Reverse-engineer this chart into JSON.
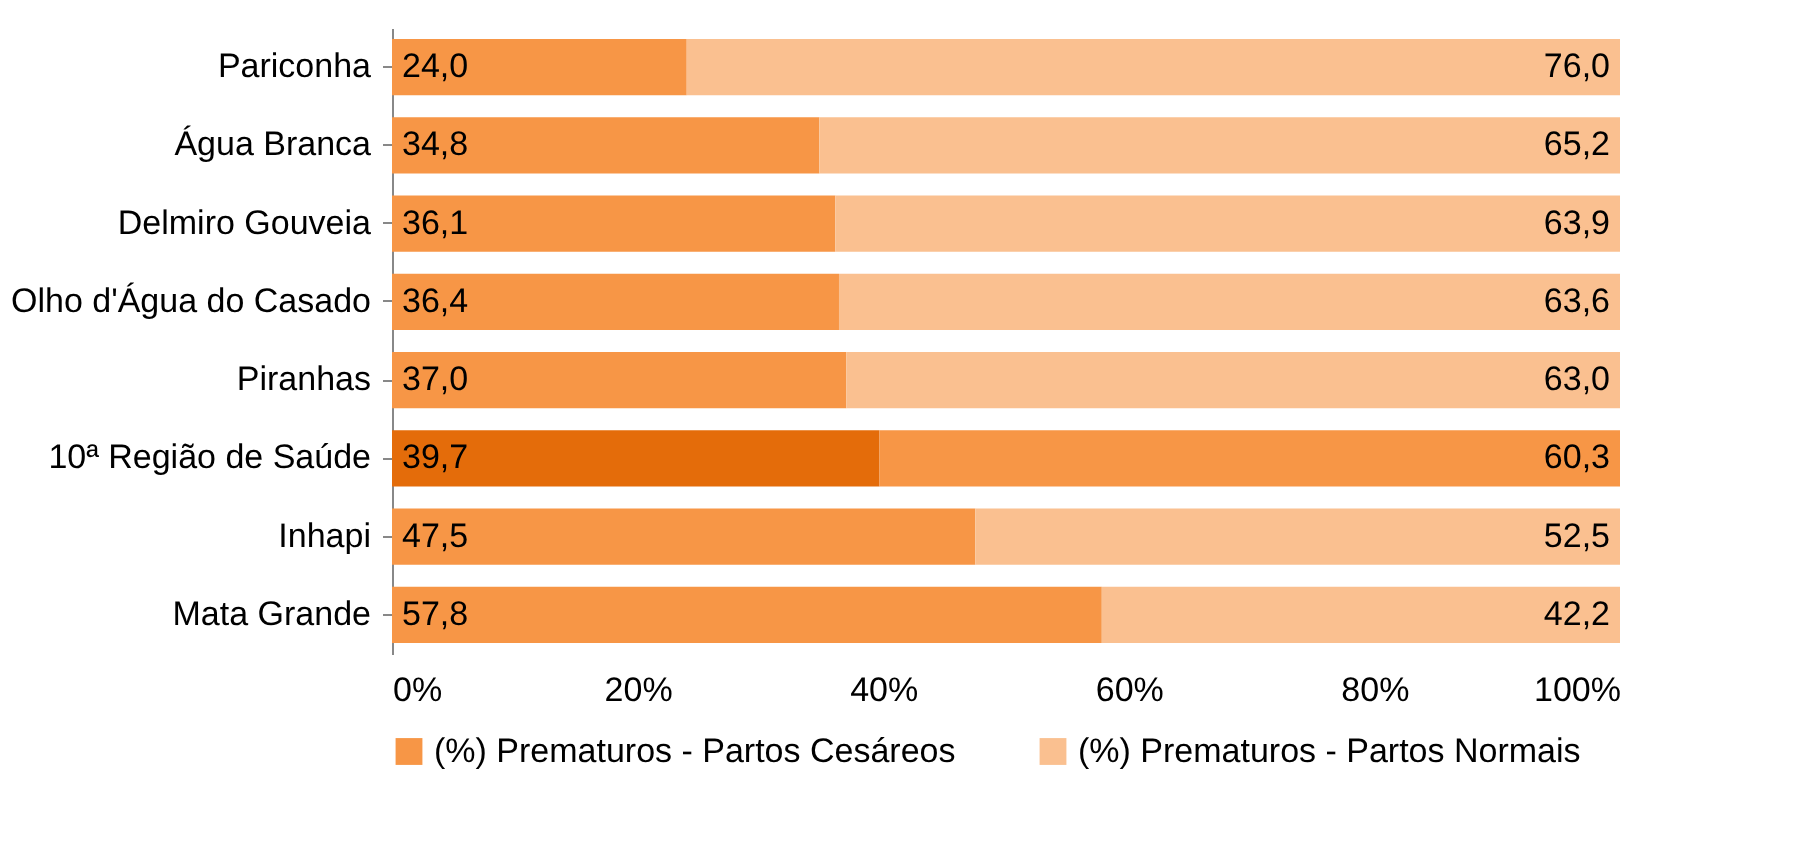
{
  "chart_data": {
    "type": "bar",
    "orientation": "horizontal",
    "stacked": true,
    "categories": [
      "Pariconha",
      "Água Branca",
      "Delmiro Gouveia",
      "Olho d'Água do Casado",
      "Piranhas",
      "10ª Região de Saúde",
      "Inhapi",
      "Mata Grande"
    ],
    "series": [
      {
        "name": "(%) Prematuros - Partos Cesáreos",
        "color": "#f79646",
        "colors": [
          "#f79646",
          "#f79646",
          "#f79646",
          "#f79646",
          "#f79646",
          "#e46c0a",
          "#f79646",
          "#f79646"
        ],
        "values": [
          24.0,
          34.8,
          36.1,
          36.4,
          37.0,
          39.7,
          47.5,
          57.8
        ],
        "value_labels": [
          "24,0",
          "34,8",
          "36,1",
          "36,4",
          "37,0",
          "39,7",
          "47,5",
          "57,8"
        ]
      },
      {
        "name": "(%) Prematuros - Partos Normais",
        "color": "#fac090",
        "colors": [
          "#fac090",
          "#fac090",
          "#fac090",
          "#fac090",
          "#fac090",
          "#f79646",
          "#fac090",
          "#fac090"
        ],
        "values": [
          76.0,
          65.2,
          63.9,
          63.6,
          63.0,
          60.3,
          52.5,
          42.2
        ],
        "value_labels": [
          "76,0",
          "65,2",
          "63,9",
          "63,6",
          "63,0",
          "60,3",
          "52,5",
          "42,2"
        ]
      }
    ],
    "xlim": [
      0,
      100
    ],
    "xticks": [
      {
        "value": 0,
        "label": "0%"
      },
      {
        "value": 20,
        "label": "20%"
      },
      {
        "value": 40,
        "label": "40%"
      },
      {
        "value": 60,
        "label": "60%"
      },
      {
        "value": 80,
        "label": "80%"
      },
      {
        "value": 100,
        "label": "100%"
      }
    ],
    "grid": false,
    "legend": "bottom"
  }
}
